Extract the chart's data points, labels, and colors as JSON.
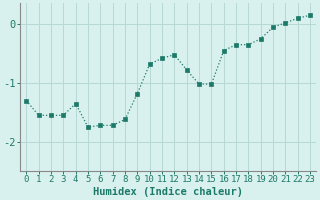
{
  "x": [
    0,
    1,
    2,
    3,
    4,
    5,
    6,
    7,
    8,
    9,
    10,
    11,
    12,
    13,
    14,
    15,
    16,
    17,
    18,
    19,
    20,
    21,
    22,
    23
  ],
  "y": [
    -1.3,
    -1.55,
    -1.55,
    -1.55,
    -1.35,
    -1.75,
    -1.72,
    -1.72,
    -1.62,
    -1.18,
    -0.68,
    -0.58,
    -0.52,
    -0.78,
    -1.02,
    -1.02,
    -0.45,
    -0.35,
    -0.35,
    -0.25,
    -0.05,
    0.02,
    0.1,
    0.15
  ],
  "line_color": "#1d7a68",
  "marker_color": "#1d7a68",
  "bg_color": "#d8f0ee",
  "grid_color": "#b8d8d5",
  "xlabel": "Humidex (Indice chaleur)",
  "xlim": [
    -0.5,
    23.5
  ],
  "ylim": [
    -2.5,
    0.35
  ],
  "yticks": [
    0,
    -1,
    -2
  ],
  "xtick_labels": [
    "0",
    "1",
    "2",
    "3",
    "4",
    "5",
    "6",
    "7",
    "8",
    "9",
    "10",
    "11",
    "12",
    "13",
    "14",
    "15",
    "16",
    "17",
    "18",
    "19",
    "20",
    "21",
    "22",
    "23"
  ],
  "font_size": 6.5,
  "xlabel_fontsize": 7.5,
  "spine_color": "#888888"
}
